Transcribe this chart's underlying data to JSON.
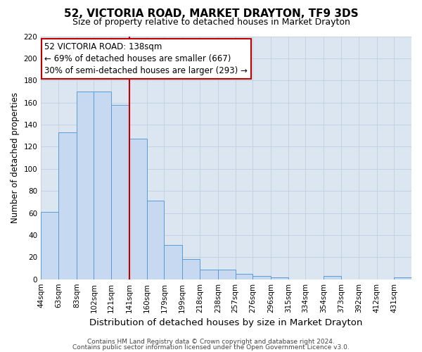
{
  "title": "52, VICTORIA ROAD, MARKET DRAYTON, TF9 3DS",
  "subtitle": "Size of property relative to detached houses in Market Drayton",
  "xlabel": "Distribution of detached houses by size in Market Drayton",
  "ylabel": "Number of detached properties",
  "bin_labels": [
    "44sqm",
    "63sqm",
    "83sqm",
    "102sqm",
    "121sqm",
    "141sqm",
    "160sqm",
    "179sqm",
    "199sqm",
    "218sqm",
    "238sqm",
    "257sqm",
    "276sqm",
    "296sqm",
    "315sqm",
    "334sqm",
    "354sqm",
    "373sqm",
    "392sqm",
    "412sqm",
    "431sqm"
  ],
  "bar_values": [
    61,
    133,
    170,
    170,
    158,
    127,
    71,
    31,
    18,
    9,
    9,
    5,
    3,
    2,
    0,
    0,
    3,
    0,
    0,
    0,
    2
  ],
  "bin_edges": [
    44,
    63,
    83,
    102,
    121,
    141,
    160,
    179,
    199,
    218,
    238,
    257,
    276,
    296,
    315,
    334,
    354,
    373,
    392,
    412,
    431,
    450
  ],
  "bar_color": "#c6d9f0",
  "bar_edge_color": "#5b9bd5",
  "vline_x": 141,
  "vline_color": "#c00000",
  "annotation_line1": "52 VICTORIA ROAD: 138sqm",
  "annotation_line2": "← 69% of detached houses are smaller (667)",
  "annotation_line3": "30% of semi-detached houses are larger (293) →",
  "annotation_box_color": "#c00000",
  "ylim": [
    0,
    220
  ],
  "yticks": [
    0,
    20,
    40,
    60,
    80,
    100,
    120,
    140,
    160,
    180,
    200,
    220
  ],
  "grid_color": "#c0cfe0",
  "background_color": "#dce6f1",
  "footer_line1": "Contains HM Land Registry data © Crown copyright and database right 2024.",
  "footer_line2": "Contains public sector information licensed under the Open Government Licence v3.0.",
  "title_fontsize": 11,
  "subtitle_fontsize": 9,
  "xlabel_fontsize": 9.5,
  "ylabel_fontsize": 8.5,
  "tick_fontsize": 7.5,
  "annotation_fontsize": 8.5,
  "footer_fontsize": 6.5
}
